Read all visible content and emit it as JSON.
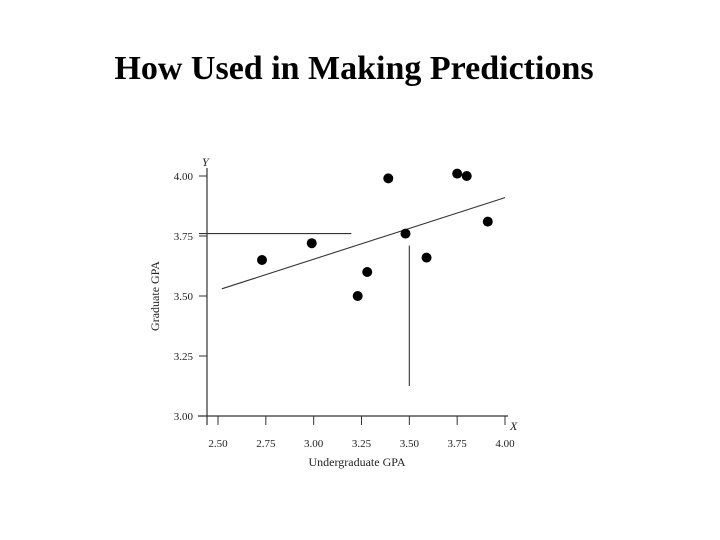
{
  "slide": {
    "title": "How Used in Making Predictions"
  },
  "chart_data": {
    "type": "scatter",
    "title": "",
    "xlabel": "Undergraduate GPA",
    "ylabel": "Graduate GPA",
    "x_axis_letter": "X",
    "y_axis_letter": "Y",
    "xlim": [
      2.5,
      4.0
    ],
    "ylim": [
      3.0,
      4.0
    ],
    "x_ticks": [
      "2.50",
      "2.75",
      "3.00",
      "3.25",
      "3.50",
      "3.75",
      "4.00"
    ],
    "y_ticks": [
      "3.00",
      "3.25",
      "3.50",
      "3.75",
      "4.00"
    ],
    "points": [
      {
        "x": 2.73,
        "y": 3.65
      },
      {
        "x": 2.99,
        "y": 3.72
      },
      {
        "x": 3.23,
        "y": 3.5
      },
      {
        "x": 3.28,
        "y": 3.6
      },
      {
        "x": 3.39,
        "y": 3.99
      },
      {
        "x": 3.48,
        "y": 3.76
      },
      {
        "x": 3.59,
        "y": 3.66
      },
      {
        "x": 3.75,
        "y": 4.01
      },
      {
        "x": 3.8,
        "y": 4.0
      },
      {
        "x": 3.91,
        "y": 3.81
      }
    ],
    "regression_line": {
      "x": [
        2.52,
        4.0
      ],
      "y": [
        3.53,
        3.91
      ]
    },
    "prediction_guide": {
      "x": 3.5,
      "y": 3.76
    },
    "grid": false,
    "legend": "none",
    "colors": {
      "points": "#000000",
      "lines": "#333333",
      "text": "#222222"
    }
  }
}
